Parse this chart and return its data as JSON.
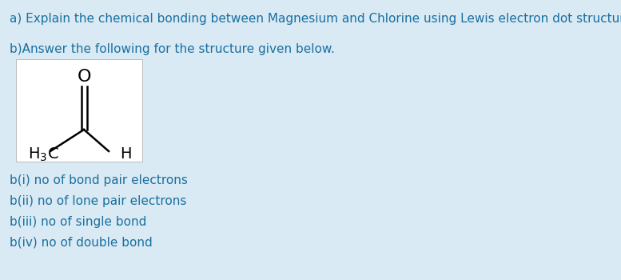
{
  "background_color": "#d9eaf4",
  "text_color": "#1a6fa0",
  "molecule_box_color": "#ffffff",
  "line_a": "a) Explain the chemical bonding between Magnesium and Chlorine using Lewis electron dot structure.",
  "line_b": "b)Answer the following for the structure given below.",
  "line_bi": "b(i) no of bond pair electrons",
  "line_bii": "b(ii) no of lone pair electrons",
  "line_biii": "b(iii) no of single bond",
  "line_biv": "b(iv) no of double bond",
  "font_size_main": 11.0,
  "font_size_molecule": 14,
  "font_size_O": 16
}
